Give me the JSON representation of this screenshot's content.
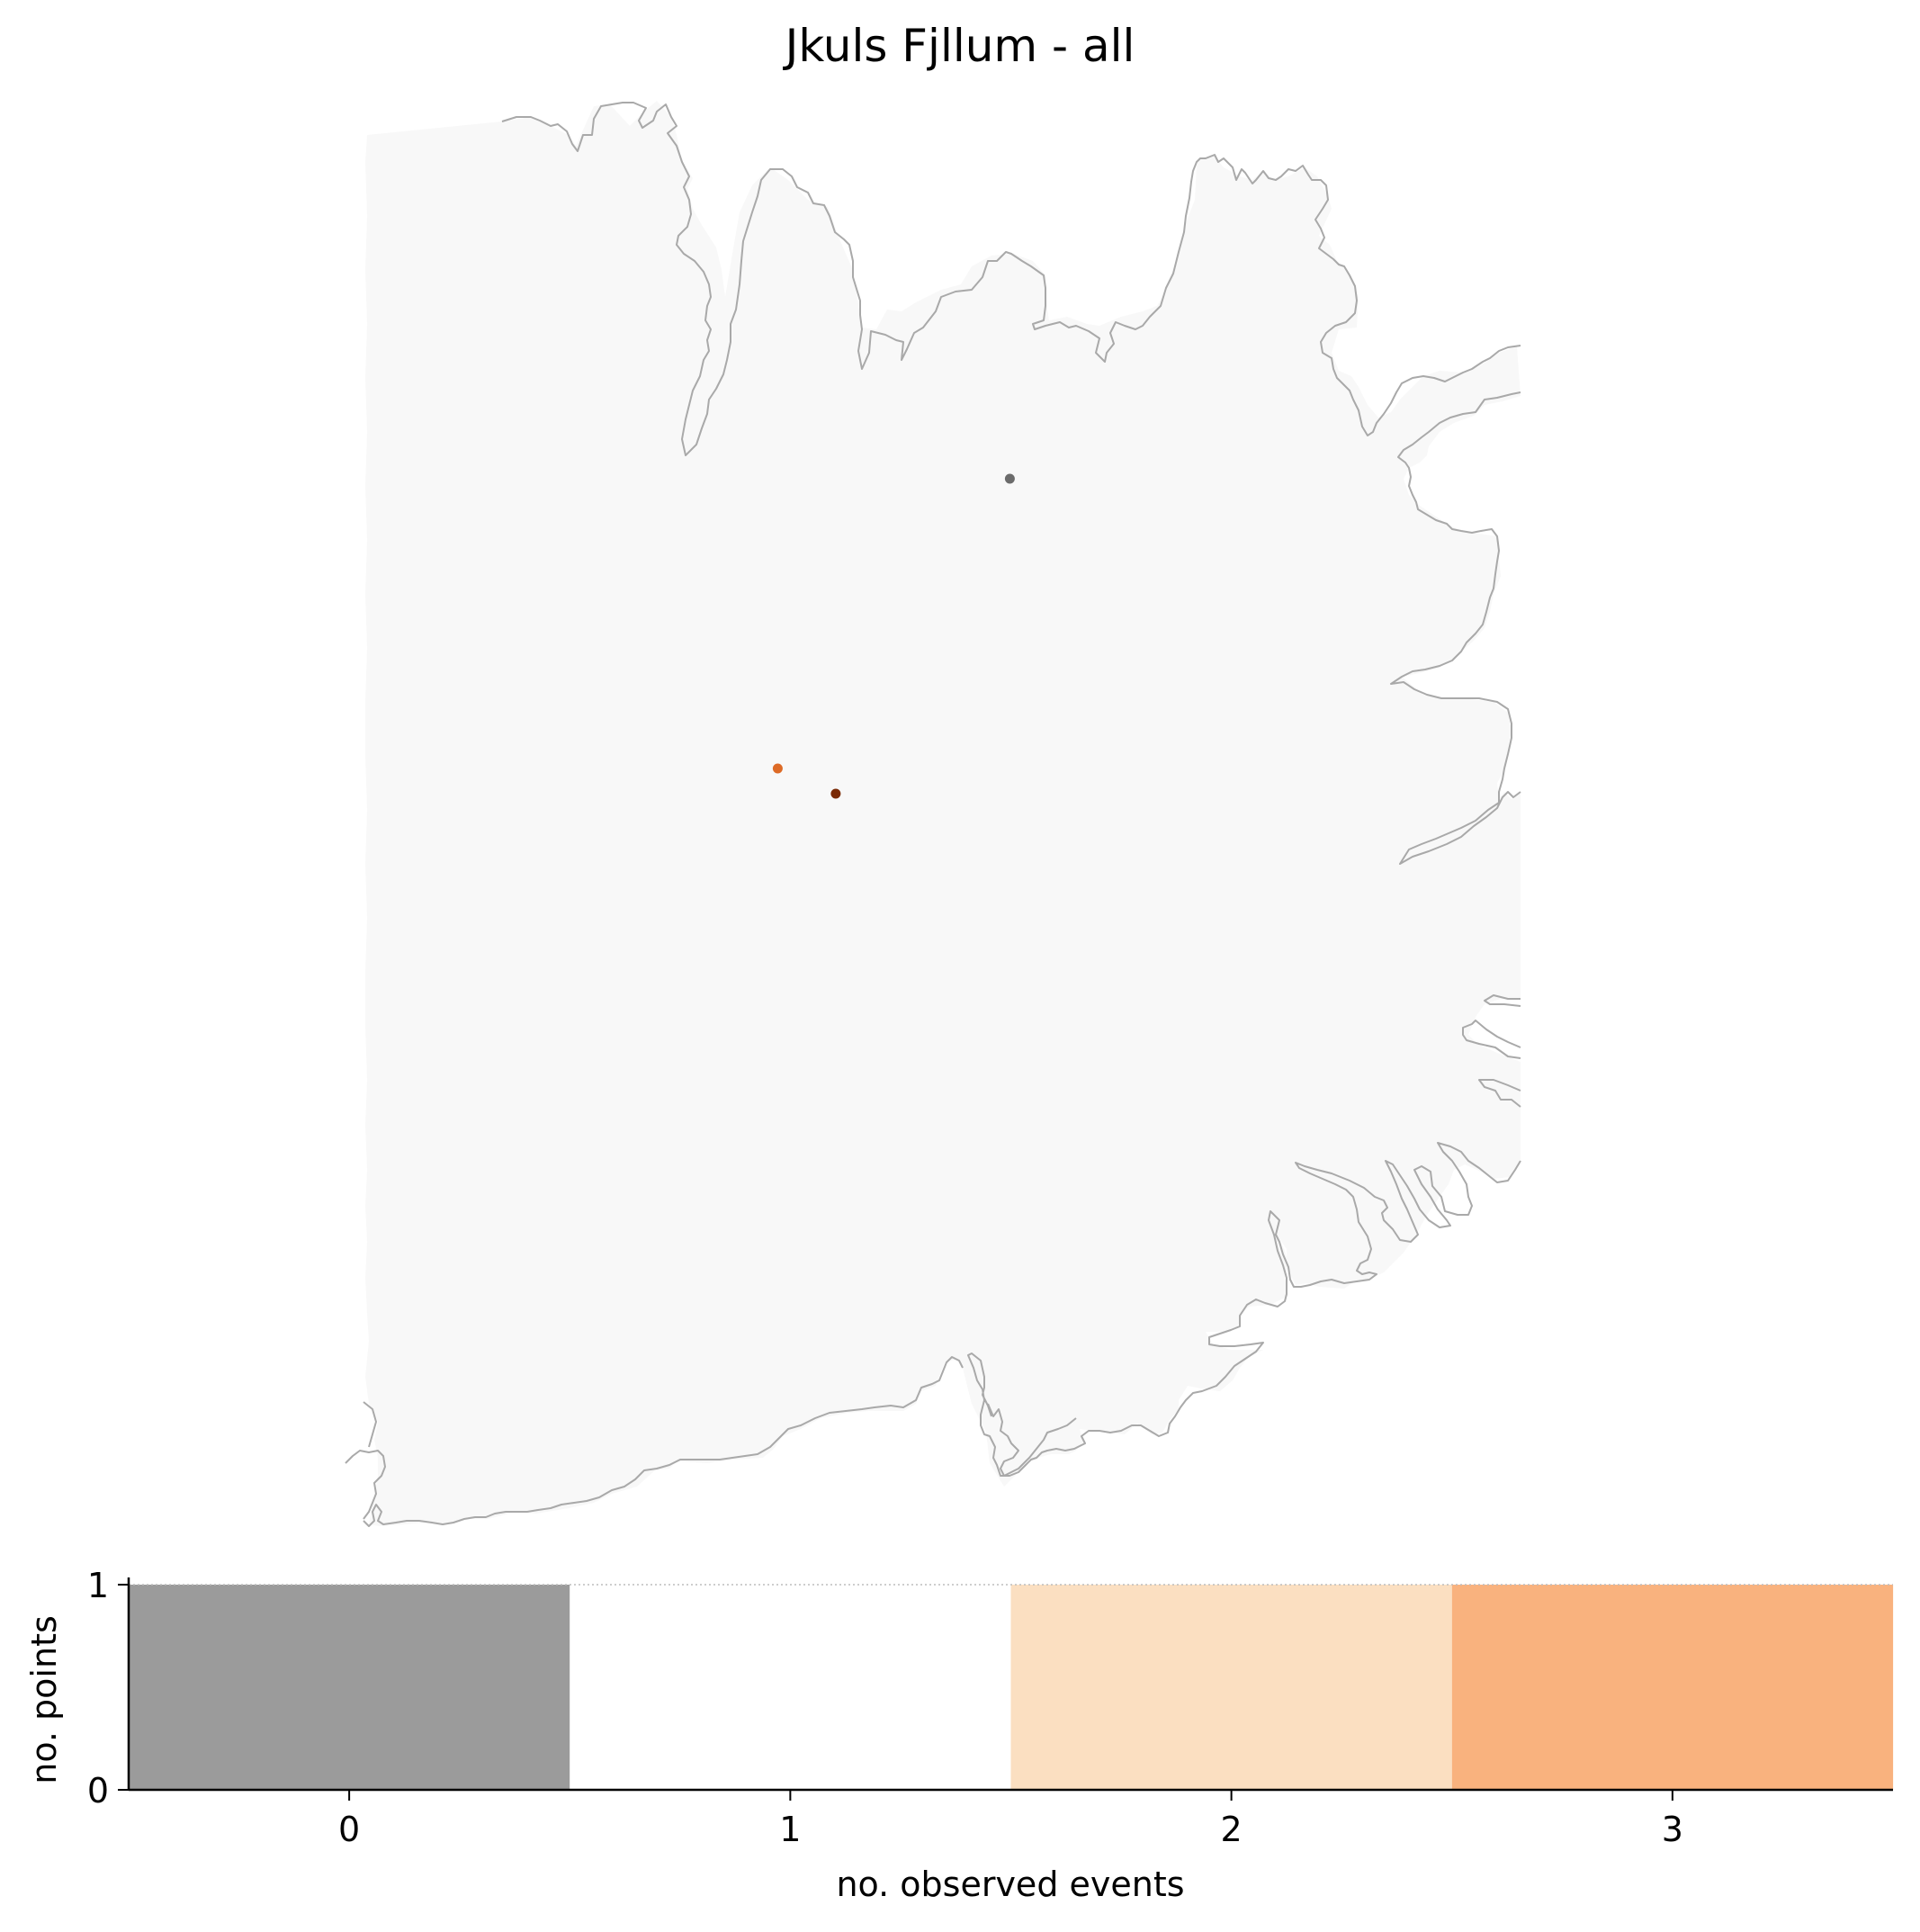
{
  "chart_data": [
    {
      "type": "scatter",
      "title": "Jkuls Fjllum - all",
      "points": [
        {
          "x": 0.56,
          "y": 0.38,
          "color": "#6b6b6b"
        },
        {
          "x": 0.36,
          "y": 0.61,
          "color": "#dd6a26"
        },
        {
          "x": 0.41,
          "y": 0.63,
          "color": "#7a2a05"
        }
      ],
      "land_color": "#f8f8f8",
      "coast_color": "#a9a9a9"
    },
    {
      "type": "bar",
      "categories": [
        "0",
        "1",
        "2",
        "3"
      ],
      "values": [
        1,
        1,
        1,
        1
      ],
      "colors": [
        "#9b9b9b",
        "#ffffff",
        "#fbdfc1",
        "#f9b27e"
      ],
      "xlabel": "no. observed events",
      "ylabel": "no. points",
      "yticks": [
        "0",
        "1"
      ],
      "ylim": [
        0,
        1
      ],
      "xlim": [
        -0.5,
        3.5
      ]
    }
  ]
}
